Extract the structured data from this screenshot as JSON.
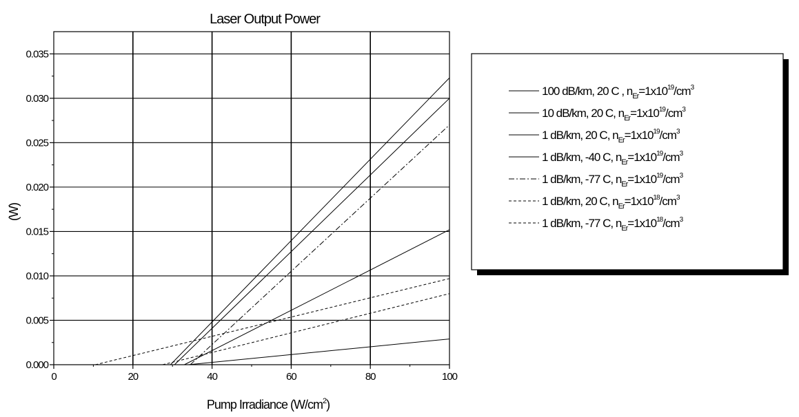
{
  "chart_data": {
    "type": "line",
    "title": "Laser Output Power",
    "xlabel": "Pump Irradiance (W/cm",
    "xlabel_sup": "2",
    "xlabel_close": ")",
    "ylabel": "(W)",
    "xlim": [
      0,
      100
    ],
    "ylim": [
      0,
      0.0375
    ],
    "grid": true,
    "legend_position": "right",
    "x_ticks": [
      "0",
      "20",
      "40",
      "60",
      "80",
      "100"
    ],
    "x_tick_values": [
      0,
      20,
      40,
      60,
      80,
      100
    ],
    "y_ticks": [
      "0.000",
      "0.005",
      "0.010",
      "0.015",
      "0.020",
      "0.025",
      "0.030",
      "0.035"
    ],
    "y_tick_values": [
      0,
      0.005,
      0.01,
      0.015,
      0.02,
      0.025,
      0.03,
      0.035
    ],
    "series": [
      {
        "name": "100 dB/km, 20 C , n=1x10/cm",
        "label_main": "100 dB/km, 20 C , n",
        "label_sub": "Er",
        "label_mid": "=1x10",
        "label_sup": "19",
        "label_unit": "/cm",
        "label_unit_sup": "3",
        "dash": "solid",
        "x": [
          34,
          100
        ],
        "y": [
          0,
          0.0029
        ]
      },
      {
        "name": "10 dB/km, 20 C, n=1x10/cm",
        "label_main": "10 dB/km, 20 C, n",
        "label_sub": "Er",
        "label_mid": "=1x10",
        "label_sup": "19",
        "label_unit": "/cm",
        "label_unit_sup": "3",
        "dash": "solid",
        "x": [
          33,
          100
        ],
        "y": [
          0,
          0.0152
        ]
      },
      {
        "name": "1 dB/km, 20 C, n=1x10/cm",
        "label_main": "1 dB/km, 20 C, n",
        "label_sub": "Er",
        "label_mid": "=1x10",
        "label_sup": "19",
        "label_unit": "/cm",
        "label_unit_sup": "3",
        "dash": "solid",
        "x": [
          29.5,
          100
        ],
        "y": [
          0,
          0.0323
        ]
      },
      {
        "name": "1 dB/km, -40 C, n=1x10/cm",
        "label_main": "1 dB/km, -40 C, n",
        "label_sub": "Er",
        "label_mid": "=1x10",
        "label_sup": "19",
        "label_unit": "/cm",
        "label_unit_sup": "3",
        "dash": "solid",
        "x": [
          30.5,
          100
        ],
        "y": [
          0,
          0.03
        ]
      },
      {
        "name": "1 dB/km, -77 C, n=1x10/cm",
        "label_main": "1 dB/km, -77 C, n",
        "label_sub": "Er",
        "label_mid": "=1x10",
        "label_sup": "19",
        "label_unit": "/cm",
        "label_unit_sup": "3",
        "dash": "dashdot",
        "x": [
          34.5,
          100
        ],
        "y": [
          0,
          0.027
        ]
      },
      {
        "name": "1 dB/km, 20 C, n=1x10/cm",
        "label_main": "1 dB/km, 20 C, n",
        "label_sub": "Er",
        "label_mid": "=1x10",
        "label_sup": "18",
        "label_unit": "/cm",
        "label_unit_sup": "3",
        "dash": "dash",
        "x": [
          10.5,
          100
        ],
        "y": [
          0,
          0.0097
        ]
      },
      {
        "name": "1 dB/km, -77 C, n=1x10/cm",
        "label_main": "1 dB/km, -77 C, n",
        "label_sub": "Er",
        "label_mid": "=1x10",
        "label_sup": "18",
        "label_unit": "/cm",
        "label_unit_sup": "3",
        "dash": "dash",
        "x": [
          27.5,
          100
        ],
        "y": [
          0,
          0.008
        ]
      }
    ]
  }
}
